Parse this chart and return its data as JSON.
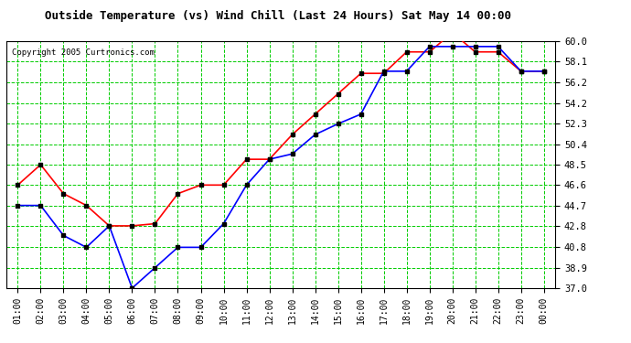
{
  "title": "Outside Temperature (vs) Wind Chill (Last 24 Hours) Sat May 14 00:00",
  "copyright": "Copyright 2005 Curtronics.com",
  "hours": [
    "01:00",
    "02:00",
    "03:00",
    "04:00",
    "05:00",
    "06:00",
    "07:00",
    "08:00",
    "09:00",
    "10:00",
    "11:00",
    "12:00",
    "13:00",
    "14:00",
    "15:00",
    "16:00",
    "17:00",
    "18:00",
    "19:00",
    "20:00",
    "21:00",
    "22:00",
    "23:00",
    "00:00"
  ],
  "temp_red": [
    46.6,
    48.5,
    45.8,
    44.7,
    42.8,
    42.8,
    43.0,
    45.8,
    46.6,
    46.6,
    49.0,
    49.0,
    51.3,
    53.2,
    55.1,
    57.0,
    57.0,
    59.0,
    59.0,
    60.8,
    59.0,
    59.0,
    57.2,
    57.2
  ],
  "temp_blue": [
    44.7,
    44.7,
    41.9,
    40.8,
    42.8,
    37.0,
    38.9,
    40.8,
    40.8,
    43.0,
    46.6,
    49.0,
    49.5,
    51.3,
    52.3,
    53.2,
    57.2,
    57.2,
    59.5,
    59.5,
    59.5,
    59.5,
    57.2,
    57.2
  ],
  "ylim": [
    37.0,
    60.0
  ],
  "yticks": [
    37.0,
    38.9,
    40.8,
    42.8,
    44.7,
    46.6,
    48.5,
    50.4,
    52.3,
    54.2,
    56.2,
    58.1,
    60.0
  ],
  "red_color": "#ff0000",
  "blue_color": "#0000ff",
  "grid_color": "#00cc00",
  "bg_color": "#ffffff",
  "marker": "s",
  "marker_color": "#000000",
  "marker_size": 3,
  "linewidth": 1.2,
  "title_fontsize": 9,
  "copyright_fontsize": 6.5,
  "tick_fontsize": 7.5,
  "xtick_fontsize": 7
}
